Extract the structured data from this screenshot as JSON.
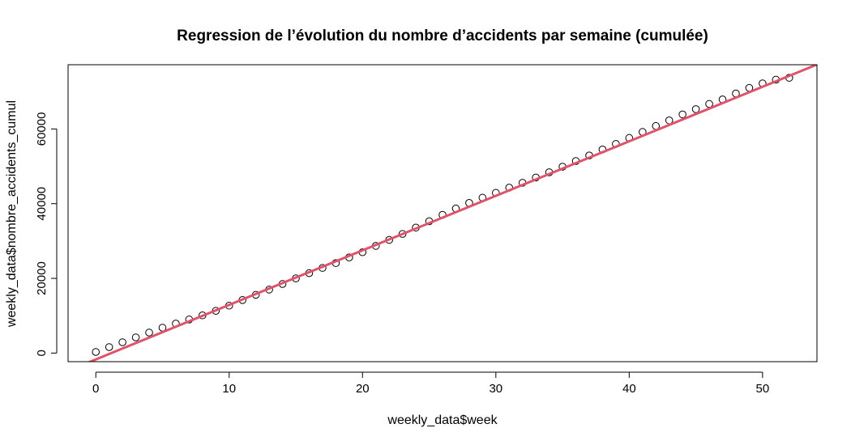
{
  "chart_data": {
    "type": "scatter",
    "title": "Regression de l’évolution du nombre d’accidents par semaine (cumulée)",
    "xlabel": "weekly_data$week",
    "ylabel": "weekly_data$nombre_accidents_cumul",
    "xlim": [
      -2.08,
      54.08
    ],
    "ylim": [
      -2300,
      77200
    ],
    "x_ticks": [
      0,
      10,
      20,
      30,
      40,
      50
    ],
    "y_ticks": [
      0,
      20000,
      40000,
      60000
    ],
    "x_tick_labels": [
      "0",
      "10",
      "20",
      "30",
      "40",
      "50"
    ],
    "y_tick_labels": [
      "0",
      "20000",
      "40000",
      "60000"
    ],
    "grid": false,
    "series": [
      {
        "marker": "open-circle",
        "color": "#000000",
        "x": [
          0,
          1,
          2,
          3,
          4,
          5,
          6,
          7,
          8,
          9,
          10,
          11,
          12,
          13,
          14,
          15,
          16,
          17,
          18,
          19,
          20,
          21,
          22,
          23,
          24,
          25,
          26,
          27,
          28,
          29,
          30,
          31,
          32,
          33,
          34,
          35,
          36,
          37,
          38,
          39,
          40,
          41,
          42,
          43,
          44,
          45,
          46,
          47,
          48,
          49,
          50,
          51,
          52
        ],
        "y": [
          300,
          1600,
          2900,
          4200,
          5500,
          6800,
          7900,
          9000,
          10100,
          11300,
          12700,
          14200,
          15600,
          17000,
          18500,
          20000,
          21400,
          22800,
          24100,
          25600,
          27000,
          28700,
          30300,
          31900,
          33600,
          35300,
          37000,
          38700,
          40200,
          41600,
          42900,
          44300,
          45600,
          47000,
          48400,
          49900,
          51400,
          52900,
          54500,
          56000,
          57600,
          59200,
          60800,
          62300,
          63900,
          65300,
          66700,
          67900,
          69500,
          71000,
          72200,
          73200,
          73700
        ]
      }
    ],
    "regression_line": {
      "color": "#df536b",
      "intercept": -1700,
      "slope": 1460
    }
  }
}
